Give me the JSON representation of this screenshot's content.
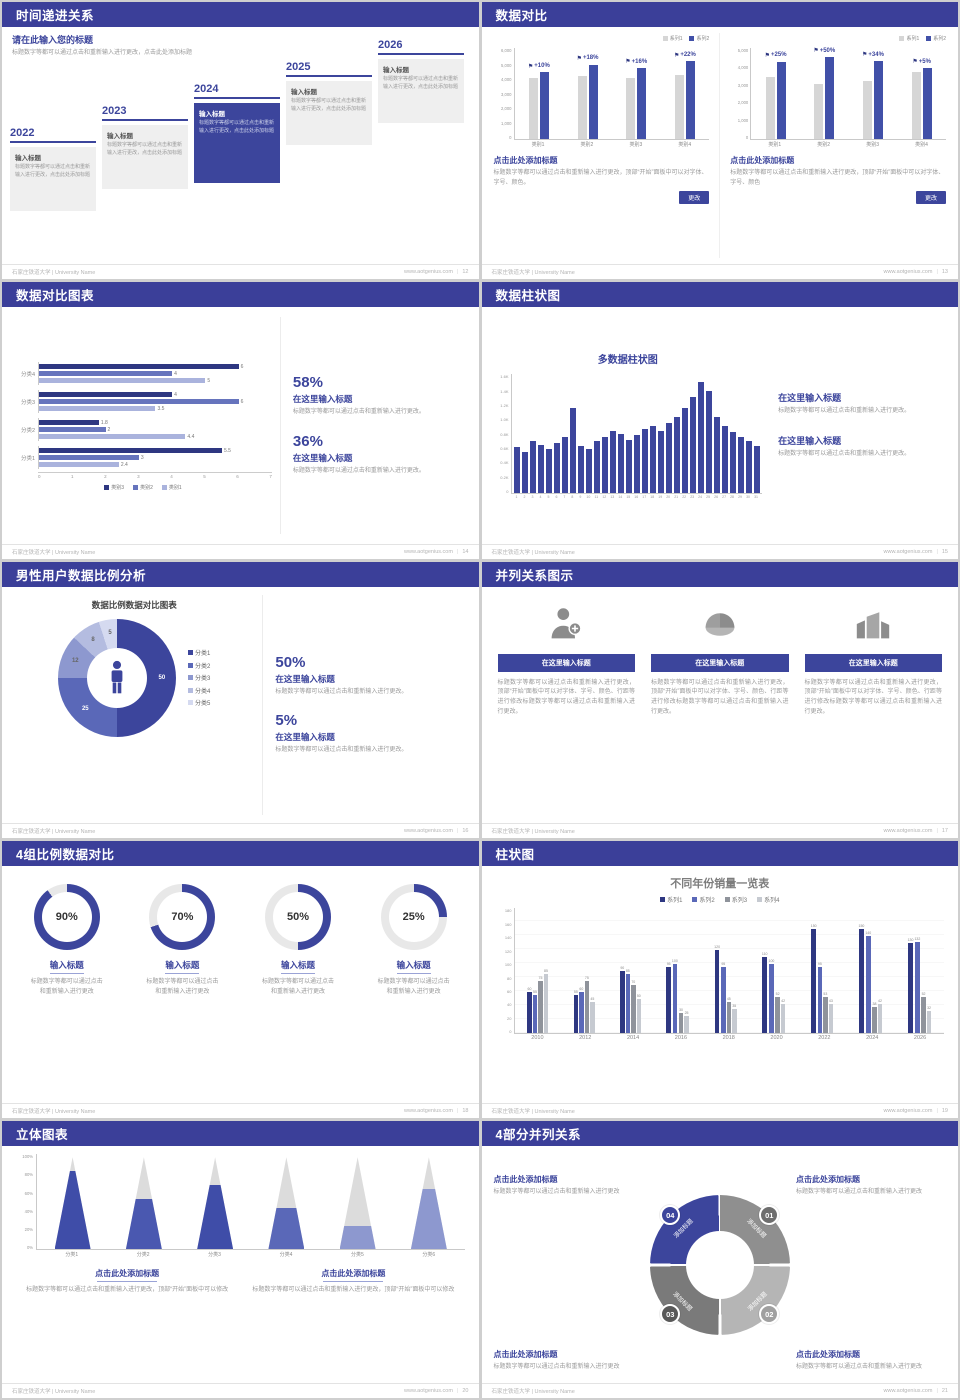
{
  "palette": {
    "header_bg": "#3b3f99",
    "accent": "#3c459c",
    "accent_dark": "#2e3781",
    "bar_blue": "#4150a8",
    "bar_mid": "#6674bd",
    "bar_light": "#aab3dd",
    "gray_bar": "#d6d6d6",
    "text_gray": "#9a9a9a"
  },
  "footer": {
    "org": "石家庄铁道大学 | University Name",
    "site": "www.aotgenius.com"
  },
  "slides": {
    "s12": {
      "title": "时间递进关系",
      "page": "12",
      "intro_title": "请在此输入您的标题",
      "intro_text": "标题数字等都可以通过点击和重新输入进行更改，点击此处添加标题",
      "years": [
        {
          "year": "2022",
          "box_title": "输入标题",
          "box_text": "标题数字等都可以通过点击和重新输入进行更改，点击此处添加标题",
          "dark": false
        },
        {
          "year": "2023",
          "box_title": "输入标题",
          "box_text": "标题数字等都可以通过点击和重新输入进行更改，点击此处添加标题",
          "dark": false
        },
        {
          "year": "2024",
          "box_title": "输入标题",
          "box_text": "标题数字等都可以通过点击和重新输入进行更改，点击此处添加标题",
          "dark": true
        },
        {
          "year": "2025",
          "box_title": "输入标题",
          "box_text": "标题数字等都可以通过点击和重新输入进行更改，点击此处添加标题",
          "dark": false
        },
        {
          "year": "2026",
          "box_title": "输入标题",
          "box_text": "标题数字等都可以通过点击和重新输入进行更改，点击此处添加标题",
          "dark": false
        }
      ]
    },
    "s13": {
      "title": "数据对比",
      "page": "13",
      "columns": [
        {
          "heading": "点击此处添加标题",
          "body": "标题数字等都可以通过点击和重新输入进行更改，顶部“开始”面板中可以对字体、字号、颜色。",
          "button": "更改"
        },
        {
          "heading": "点击此处添加标题",
          "body": "标题数字等都可以通过点击和重新输入进行更改，顶部“开始”面板中可以对字体、字号、颜色",
          "button": "更改"
        }
      ]
    },
    "s14": {
      "title": "数据对比图表",
      "page": "14",
      "stats": [
        {
          "pct": "58%",
          "heading": "在这里输入标题",
          "body": "标题数字等都可以通过点击和重新输入进行更改。"
        },
        {
          "pct": "36%",
          "heading": "在这里输入标题",
          "body": "标题数字等都可以通过点击和重新输入进行更改。"
        }
      ]
    },
    "s15": {
      "title": "数据柱状图",
      "page": "15",
      "chart_title": "多数据柱状图",
      "blocks": [
        {
          "heading": "在这里输入标题",
          "body": "标题数字等都可以通过点击和重新输入进行更改。"
        },
        {
          "heading": "在这里输入标题",
          "body": "标题数字等都可以通过点击和重新输入进行更改。"
        }
      ]
    },
    "s16": {
      "title": "男性用户数据比例分析",
      "page": "16",
      "chart_title": "数据比例数据对比图表",
      "stats": [
        {
          "pct": "50%",
          "heading": "在这里输入标题",
          "body": "标题数字等都可以通过点击和重新输入进行更改。"
        },
        {
          "pct": "5%",
          "heading": "在这里输入标题",
          "body": "标题数字等都可以通过点击和重新输入进行更改。"
        }
      ]
    },
    "s17": {
      "title": "并列关系图示",
      "page": "17",
      "items": [
        {
          "icon": "medical-person-icon",
          "heading": "在这里输入标题",
          "body": "标题数字等都可以通过点击和重新输入进行更改，顶部“开始”面板中可以对字体、字号、颜色、行距等进行修改标题数字等都可以通过点击和重新输入进行更改。"
        },
        {
          "icon": "pie-3d-icon",
          "heading": "在这里输入标题",
          "body": "标题数字等都可以通过点击和重新输入进行更改，顶部“开始”面板中可以对字体、字号、颜色、行距等进行修改标题数字等都可以通过点击和重新输入进行更改。"
        },
        {
          "icon": "building-icon",
          "heading": "在这里输入标题",
          "body": "标题数字等都可以通过点击和重新输入进行更改，顶部“开始”面板中可以对字体、字号、颜色、行距等进行修改标题数字等都可以通过点击和重新输入进行更改。"
        }
      ]
    },
    "s18": {
      "title": "4组比例数据对比",
      "page": "18",
      "items": [
        {
          "pct": 90,
          "label": "90%",
          "heading": "输入标题",
          "body": "标题数字等都可以通过点击和重新输入进行更改"
        },
        {
          "pct": 70,
          "label": "70%",
          "heading": "输入标题",
          "body": "标题数字等都可以通过点击和重新输入进行更改"
        },
        {
          "pct": 50,
          "label": "50%",
          "heading": "输入标题",
          "body": "标题数字等都可以通过点击和重新输入进行更改"
        },
        {
          "pct": 25,
          "label": "25%",
          "heading": "输入标题",
          "body": "标题数字等都可以通过点击和重新输入进行更改"
        }
      ]
    },
    "s19": {
      "title": "柱状图",
      "page": "19",
      "chart_title": "不同年份销量一览表"
    },
    "s20": {
      "title": "立体图表",
      "page": "20",
      "blocks": [
        {
          "heading": "点击此处添加标题",
          "body": "标题数字等都可以通过点击和重新输入进行更改，顶部“开始”面板中可以修改"
        },
        {
          "heading": "点击此处添加标题",
          "body": "标题数字等都可以通过点击和重新输入进行更改，顶部“开始”面板中可以修改"
        }
      ]
    },
    "s21": {
      "title": "4部分并列关系",
      "page": "21",
      "parts": [
        {
          "num": "01",
          "label": "添加标题"
        },
        {
          "num": "02",
          "label": "添加标题"
        },
        {
          "num": "03",
          "label": "添加标题"
        },
        {
          "num": "04",
          "label": "添加标题"
        }
      ],
      "seg_colors": [
        "#8f8f8f",
        "#b5b5b5",
        "#7a7a7a",
        "#3c459c"
      ],
      "badge_colors": [
        "#6e6e6e",
        "#a0a0a0",
        "#595959",
        "#3c459c"
      ],
      "blocks": [
        {
          "heading": "点击此处添加标题",
          "body": "标题数字等都可以通过点击和重新输入进行更改"
        },
        {
          "heading": "点击此处添加标题",
          "body": "标题数字等都可以通过点击和重新输入进行更改"
        },
        {
          "heading": "点击此处添加标题",
          "body": "标题数字等都可以通过点击和重新输入进行更改"
        },
        {
          "heading": "点击此处添加标题",
          "body": "标题数字等都可以通过点击和重新输入进行更改"
        }
      ]
    }
  },
  "chart_data": [
    {
      "id": "bar-compare-left",
      "slide": 13,
      "type": "bar",
      "categories": [
        "类别1",
        "类别2",
        "类别3",
        "类别4"
      ],
      "series": [
        {
          "name": "系列1",
          "color": "#d6d6d6",
          "values": [
            4000,
            4150,
            4050,
            4200
          ]
        },
        {
          "name": "系列2",
          "color": "#4150a8",
          "values": [
            4400,
            4900,
            4700,
            5120
          ]
        }
      ],
      "growth_labels": [
        "+10%",
        "+18%",
        "+16%",
        "+22%"
      ],
      "ylim": [
        0,
        6000
      ],
      "yticks": [
        "6,000",
        "5,000",
        "4,000",
        "3,000",
        "2,000",
        "1,000",
        "0"
      ]
    },
    {
      "id": "bar-compare-right",
      "slide": 13,
      "type": "bar",
      "categories": [
        "类别1",
        "类别2",
        "类别3",
        "类别4"
      ],
      "series": [
        {
          "name": "系列1",
          "color": "#d6d6d6",
          "values": [
            3400,
            3000,
            3200,
            3700
          ]
        },
        {
          "name": "系列2",
          "color": "#4150a8",
          "values": [
            4250,
            4500,
            4300,
            3900
          ]
        }
      ],
      "growth_labels": [
        "+25%",
        "+50%",
        "+34%",
        "+5%"
      ],
      "ylim": [
        0,
        5000
      ],
      "yticks": [
        "5,000",
        "4,000",
        "3,000",
        "2,000",
        "1,000",
        "0"
      ]
    },
    {
      "id": "hbar-compare",
      "slide": 14,
      "type": "bar",
      "orientation": "horizontal",
      "categories": [
        "分类4",
        "分类3",
        "分类2",
        "分类1"
      ],
      "series": [
        {
          "name": "类别3",
          "color": "#2e3781",
          "values": [
            6,
            4,
            1.8,
            5.5
          ]
        },
        {
          "name": "类别2",
          "color": "#6674bd",
          "values": [
            4,
            6,
            2,
            3
          ]
        },
        {
          "name": "类别1",
          "color": "#aab3dd",
          "values": [
            5,
            3.5,
            4.4,
            2.4
          ]
        }
      ],
      "xlim": [
        0,
        7
      ],
      "xticks": [
        "0",
        "1",
        "2",
        "3",
        "4",
        "5",
        "6",
        "7"
      ]
    },
    {
      "id": "multi-column",
      "slide": 15,
      "type": "bar",
      "title": "多数据柱状图",
      "x": [
        "1",
        "2",
        "3",
        "4",
        "5",
        "6",
        "7",
        "8",
        "9",
        "10",
        "11",
        "12",
        "13",
        "14",
        "15",
        "16",
        "17",
        "18",
        "19",
        "20",
        "21",
        "22",
        "23",
        "24",
        "25",
        "26",
        "27",
        "28",
        "29",
        "30",
        "31"
      ],
      "values": [
        620,
        560,
        700,
        650,
        600,
        680,
        760,
        1150,
        640,
        600,
        700,
        760,
        830,
        800,
        720,
        780,
        860,
        900,
        830,
        950,
        1020,
        1150,
        1300,
        1500,
        1380,
        1020,
        900,
        820,
        760,
        700,
        640
      ],
      "ylim": [
        0,
        1600
      ],
      "yticks": [
        "1.6K",
        "1.4K",
        "1.2K",
        "1.0K",
        "0.8K",
        "0.6K",
        "0.4K",
        "0.2K",
        "0"
      ]
    },
    {
      "id": "male-donut",
      "slide": 16,
      "type": "pie",
      "title": "数据比例数据对比图表",
      "labels": [
        "分类1",
        "分类2",
        "分类3",
        "分类4",
        "分类5"
      ],
      "values": [
        50,
        25,
        12,
        8,
        5
      ],
      "colors": [
        "#3c459c",
        "#5a68b8",
        "#8d98cf",
        "#b4bce0",
        "#d5daf0"
      ]
    },
    {
      "id": "progress-rings",
      "slide": 18,
      "type": "pie",
      "unit": "%",
      "values": [
        90,
        70,
        50,
        25
      ],
      "accent": "#3c459c",
      "track": "#e8e8e8"
    },
    {
      "id": "yearly-sales",
      "slide": 19,
      "type": "bar",
      "title": "不同年份销量一览表",
      "categories": [
        "2010",
        "2012",
        "2014",
        "2016",
        "2018",
        "2020",
        "2022",
        "2024",
        "2026"
      ],
      "series": [
        {
          "name": "系列1",
          "color": "#2e3781",
          "values": [
            60,
            55,
            90,
            95,
            120,
            110,
            150,
            150,
            130
          ]
        },
        {
          "name": "系列2",
          "color": "#5a68b8",
          "values": [
            55,
            60,
            85,
            100,
            95,
            100,
            95,
            140,
            132
          ]
        },
        {
          "name": "系列3",
          "color": "#8f939b",
          "values": [
            75,
            75,
            70,
            30,
            45,
            52,
            53,
            38,
            52
          ]
        },
        {
          "name": "系列4",
          "color": "#c6cad1",
          "values": [
            85,
            45,
            50,
            25,
            35,
            42,
            43,
            42,
            32
          ]
        }
      ],
      "ylim": [
        0,
        180
      ],
      "yticks": [
        "180",
        "160",
        "140",
        "120",
        "100",
        "80",
        "60",
        "40",
        "20",
        "0"
      ]
    },
    {
      "id": "cone-chart",
      "slide": 20,
      "type": "bar",
      "variant": "cone",
      "categories": [
        "分类1",
        "分类2",
        "分类3",
        "分类4",
        "分类5",
        "分类6"
      ],
      "values": [
        85,
        55,
        70,
        45,
        25,
        65
      ],
      "colors": [
        "#3f4da8",
        "#4a58b0",
        "#3f4da8",
        "#5a68b8",
        "#8d98cf",
        "#8d98cf"
      ],
      "ylim": [
        0,
        100
      ],
      "yticks": [
        "100%",
        "80%",
        "60%",
        "40%",
        "20%",
        "0%"
      ]
    }
  ]
}
